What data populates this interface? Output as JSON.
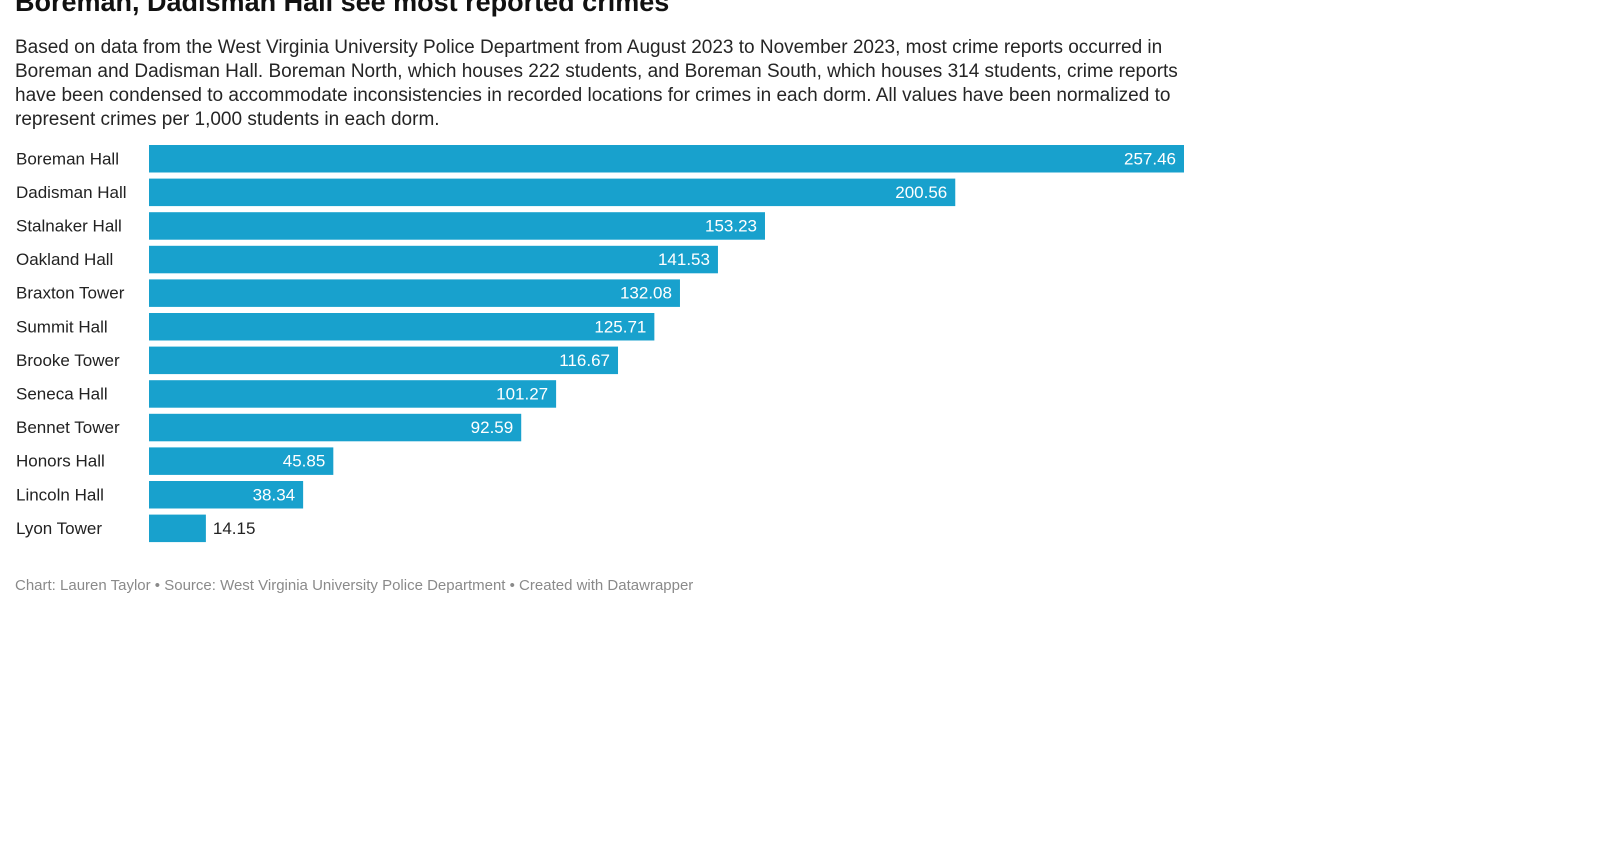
{
  "header": {
    "title": "Boreman, Dadisman Hall see most reported crimes",
    "description": "Based on data from the West Virginia University Police Department from August 2023 to November 2023, most crime reports occurred in Boreman and Dadisman Hall. Boreman North, which houses 222 students, and Boreman South, which houses 314 students, crime reports have been condensed to accommodate inconsistencies in recorded locations for crimes in each dorm. All values have been normalized to represent crimes per 1,000 students in each dorm."
  },
  "footer": {
    "credit": "Chart: Lauren Taylor • Source: West Virginia University Police Department • Created with Datawrapper"
  },
  "colors": {
    "bar": "#18a1cd",
    "value_inside": "#ffffff",
    "value_outside": "#222222"
  },
  "chart_data": {
    "type": "bar",
    "orientation": "horizontal",
    "title": "Boreman, Dadisman Hall see most reported crimes",
    "xlabel": "",
    "ylabel": "",
    "unit": "crimes per 1,000 students",
    "grid": false,
    "legend": "none",
    "xlim": [
      0,
      257.46
    ],
    "categories": [
      "Boreman Hall",
      "Dadisman Hall",
      "Stalnaker Hall",
      "Oakland Hall",
      "Braxton Tower",
      "Summit Hall",
      "Brooke Tower",
      "Seneca Hall",
      "Bennet Tower",
      "Honors Hall",
      "Lincoln Hall",
      "Lyon Tower"
    ],
    "values": [
      257.46,
      200.56,
      153.23,
      141.53,
      132.08,
      125.71,
      116.67,
      101.27,
      92.59,
      45.85,
      38.34,
      14.15
    ],
    "value_labels": [
      "257.46",
      "200.56",
      "153.23",
      "141.53",
      "132.08",
      "125.71",
      "116.67",
      "101.27",
      "92.59",
      "45.85",
      "38.34",
      "14.15"
    ]
  }
}
